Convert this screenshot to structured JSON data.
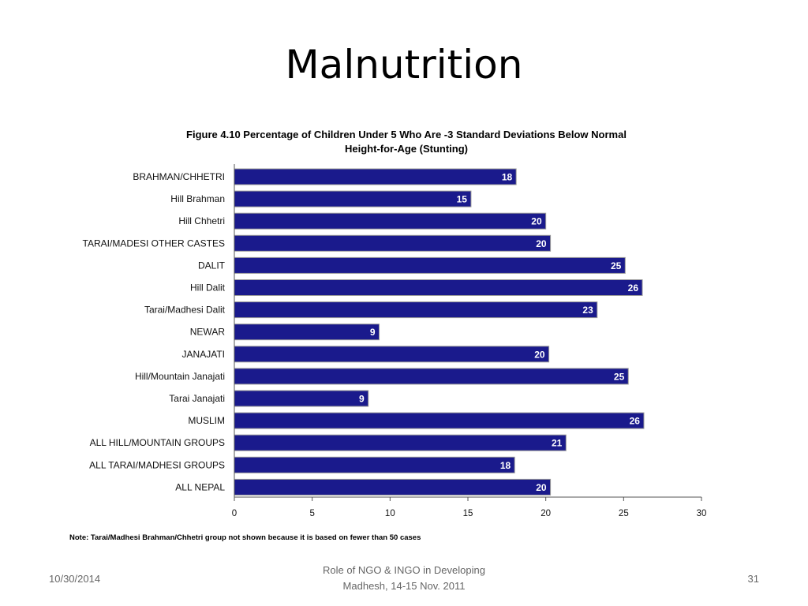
{
  "slide": {
    "title": "Malnutrition",
    "footer_date": "10/30/2014",
    "footer_center_line1": "Role of NGO & INGO in Developing",
    "footer_center_line2": "Madhesh, 14-15 Nov. 2011",
    "page_number": "31"
  },
  "chart_data": {
    "type": "bar",
    "orientation": "horizontal",
    "title_line1": "Figure 4.10  Percentage of Children Under 5 Who Are -3 Standard Deviations Below Normal",
    "title_line2": "Height-for-Age (Stunting)",
    "categories": [
      "BRAHMAN/CHHETRI",
      "Hill Brahman",
      "Hill Chhetri",
      "TARAI/MADESI OTHER CASTES",
      "DALIT",
      "Hill Dalit",
      "Tarai/Madhesi Dalit",
      "NEWAR",
      "JANAJATI",
      "Hill/Mountain Janajati",
      "Tarai Janajati",
      "MUSLIM",
      "ALL HILL/MOUNTAIN GROUPS",
      "ALL TARAI/MADHESI GROUPS",
      "ALL NEPAL"
    ],
    "values": [
      18,
      15,
      20,
      20,
      25,
      26,
      23,
      9,
      20,
      25,
      9,
      26,
      21,
      18,
      20
    ],
    "bar_lengths": [
      18.1,
      15.2,
      20.0,
      20.3,
      25.1,
      26.2,
      23.3,
      9.3,
      20.2,
      25.3,
      8.6,
      26.3,
      21.3,
      18.0,
      20.3
    ],
    "xlim": [
      0,
      30
    ],
    "xticks": [
      0,
      5,
      10,
      15,
      20,
      25,
      30
    ],
    "bar_color": "#1a1a8c",
    "grid": false,
    "note": "Note: Tarai/Madhesi Brahman/Chhetri group not shown because it is based on fewer than 50 cases"
  }
}
